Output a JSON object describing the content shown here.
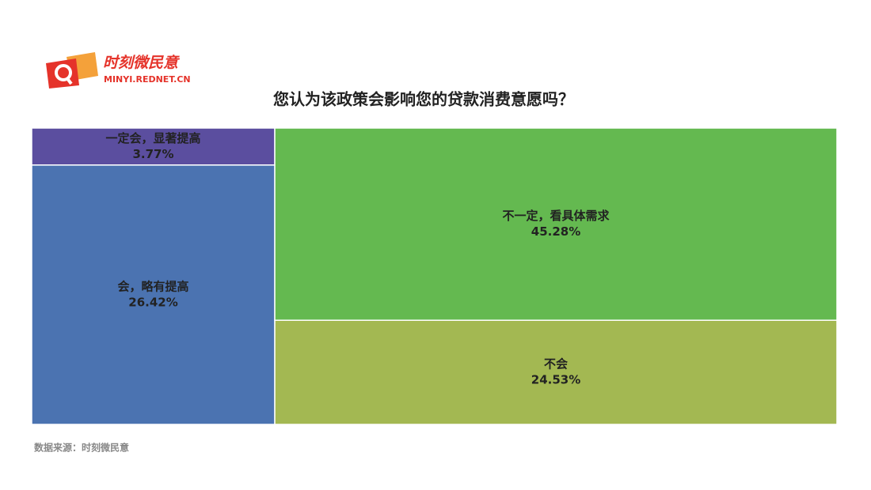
{
  "logo": {
    "name": "时刻微民意",
    "url": "MINYI.REDNET.CN"
  },
  "chart_data": {
    "type": "treemap",
    "title": "您认为该政策会影响您的贷款消费意愿吗？",
    "categories": [
      "一定会，显著提高",
      "会，略有提高",
      "不一定，看具体需求",
      "不会"
    ],
    "values": [
      3.77,
      26.42,
      45.28,
      24.53
    ],
    "value_labels": [
      "3.77%",
      "26.42%",
      "45.28%",
      "24.53%"
    ],
    "colors": [
      "#5b4e9f",
      "#4b73b1",
      "#64b950",
      "#a3b852"
    ]
  },
  "source": "数据来源：时刻微民意"
}
